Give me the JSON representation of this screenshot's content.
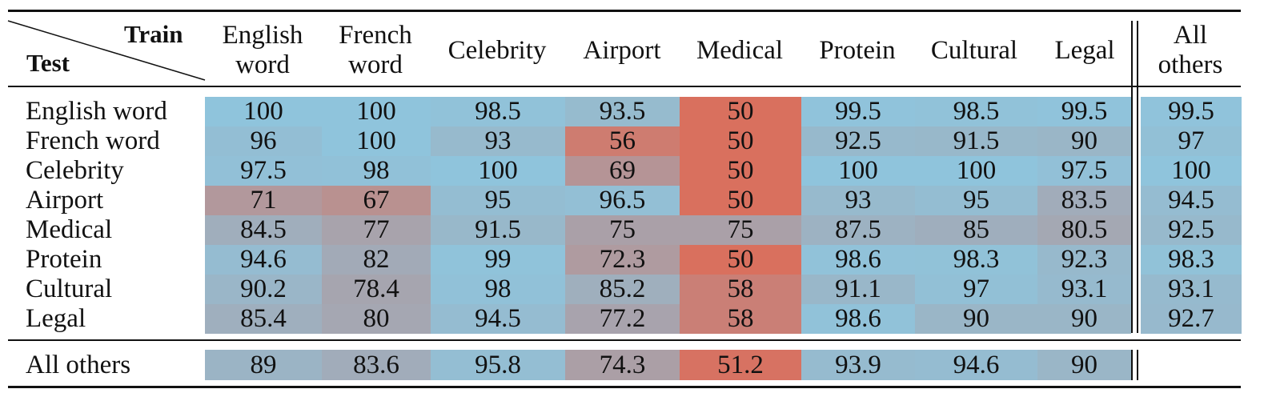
{
  "table": {
    "corner": {
      "train_label": "Train",
      "test_label": "Test"
    },
    "columns": [
      "English\nword",
      "French\nword",
      "Celebrity",
      "Airport",
      "Medical",
      "Protein",
      "Cultural",
      "Legal",
      "All\nothers"
    ],
    "rows": [
      {
        "label": "English word",
        "values": [
          "100",
          "100",
          "98.5",
          "93.5",
          "50",
          "99.5",
          "98.5",
          "99.5",
          "99.5"
        ]
      },
      {
        "label": "French word",
        "values": [
          "96",
          "100",
          "93",
          "56",
          "50",
          "92.5",
          "91.5",
          "90",
          "97"
        ]
      },
      {
        "label": "Celebrity",
        "values": [
          "97.5",
          "98",
          "100",
          "69",
          "50",
          "100",
          "100",
          "97.5",
          "100"
        ]
      },
      {
        "label": "Airport",
        "values": [
          "71",
          "67",
          "95",
          "96.5",
          "50",
          "93",
          "95",
          "83.5",
          "94.5"
        ]
      },
      {
        "label": "Medical",
        "values": [
          "84.5",
          "77",
          "91.5",
          "75",
          "75",
          "87.5",
          "85",
          "80.5",
          "92.5"
        ]
      },
      {
        "label": "Protein",
        "values": [
          "94.6",
          "82",
          "99",
          "72.3",
          "50",
          "98.6",
          "98.3",
          "92.3",
          "98.3"
        ]
      },
      {
        "label": "Cultural",
        "values": [
          "90.2",
          "78.4",
          "98",
          "85.2",
          "58",
          "91.1",
          "97",
          "93.1",
          "93.1"
        ]
      },
      {
        "label": "Legal",
        "values": [
          "85.4",
          "80",
          "94.5",
          "77.2",
          "58",
          "98.6",
          "90",
          "90",
          "92.7"
        ]
      }
    ],
    "summary_row": {
      "label": "All others",
      "values": [
        "89",
        "83.6",
        "95.8",
        "74.3",
        "51.2",
        "93.9",
        "94.6",
        "90",
        ""
      ]
    },
    "color_scale": {
      "low_color": "#d9705e",
      "high_color": "#8fc4dc",
      "min": 50,
      "max": 100
    }
  }
}
